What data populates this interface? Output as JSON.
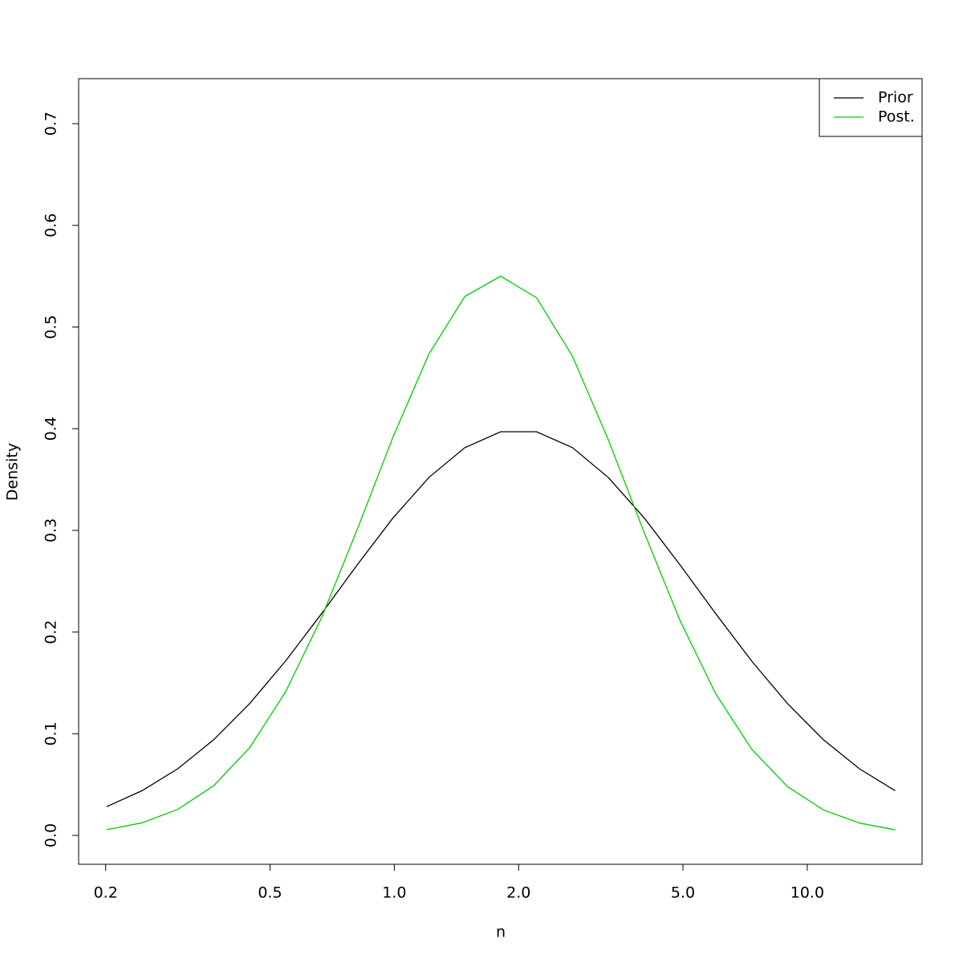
{
  "chart_data": {
    "type": "line",
    "x_label": "n",
    "y_label": "Density",
    "x": [
      0.201,
      0.245,
      0.299,
      0.365,
      0.446,
      0.545,
      0.666,
      0.813,
      0.993,
      1.213,
      1.482,
      1.81,
      2.21,
      2.7,
      3.297,
      4.028,
      4.919,
      6.008,
      7.339,
      8.963,
      10.95,
      13.37,
      16.33
    ],
    "series": [
      {
        "name": "Prior",
        "color": "#000000",
        "values": [
          0.0283,
          0.044,
          0.0656,
          0.094,
          0.1295,
          0.1714,
          0.2179,
          0.2661,
          0.3123,
          0.3521,
          0.3814,
          0.397,
          0.397,
          0.3814,
          0.3521,
          0.3123,
          0.2661,
          0.2179,
          0.1714,
          0.1295,
          0.094,
          0.0656,
          0.044
        ]
      },
      {
        "name": "Post.",
        "color": "#00cd00",
        "values": [
          0.0056,
          0.0124,
          0.0256,
          0.0488,
          0.0861,
          0.141,
          0.2139,
          0.3008,
          0.392,
          0.4735,
          0.5301,
          0.55,
          0.5288,
          0.4713,
          0.3892,
          0.298,
          0.2114,
          0.139,
          0.0847,
          0.0479,
          0.025,
          0.0122,
          0.0055
        ]
      }
    ],
    "x_log": true,
    "xlim": [
      0.172,
      18.97
    ],
    "ylim": [
      -0.0284,
      0.7443
    ],
    "xticks": [
      0.2,
      0.5,
      {
        "value": 1,
        "label": "1.0"
      },
      {
        "value": 2,
        "label": "2.0"
      },
      {
        "value": 5,
        "label": "5.0"
      },
      {
        "value": 10,
        "label": "10.0"
      }
    ],
    "yticks": [
      {
        "value": 0,
        "label": "0.0"
      },
      0.1,
      0.2,
      0.3,
      0.4,
      0.5,
      0.6,
      0.7
    ],
    "legend": "top-right"
  }
}
